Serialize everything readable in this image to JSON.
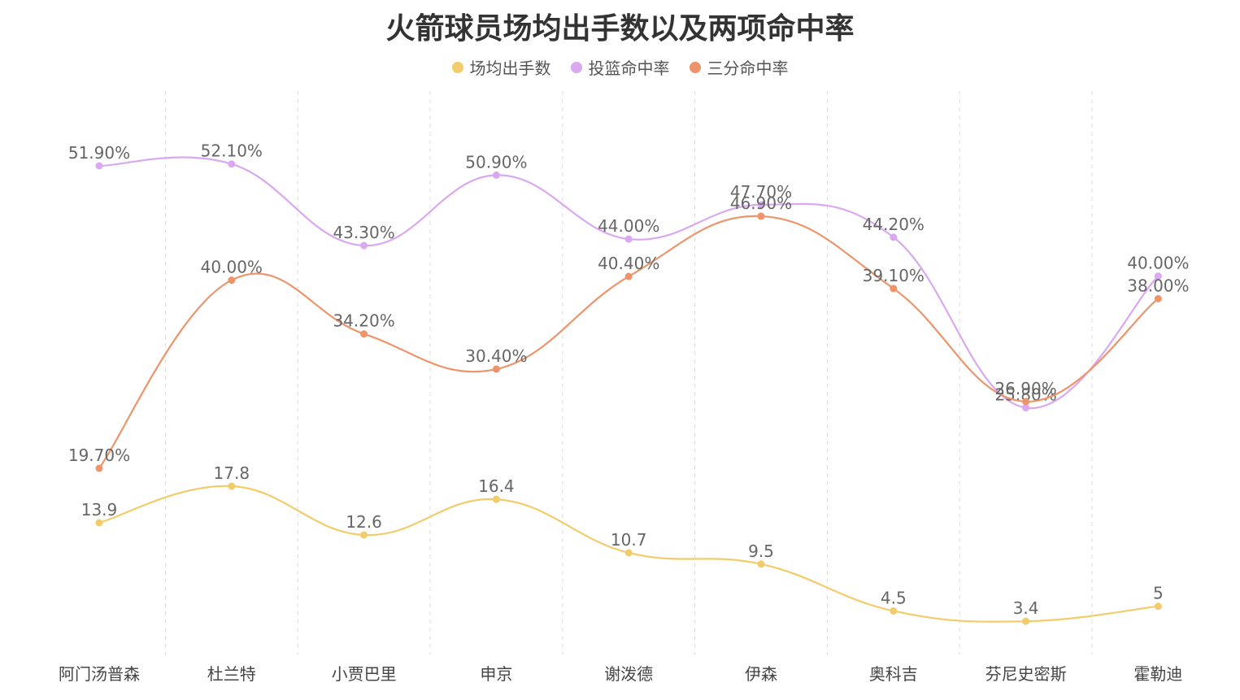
{
  "chart_data": {
    "type": "line",
    "title": "火箭球员场均出手数以及两项命中率",
    "categories": [
      "阿门汤普森",
      "杜兰特",
      "小贾巴里",
      "申京",
      "谢泼德",
      "伊森",
      "奥科吉",
      "芬尼史密斯",
      "霍勒迪"
    ],
    "series": [
      {
        "name": "场均出手数",
        "color": "#F2CC6B",
        "values": [
          13.9,
          17.8,
          12.6,
          16.4,
          10.7,
          9.5,
          4.5,
          3.4,
          5
        ],
        "labels": [
          "13.9",
          "17.8",
          "12.6",
          "16.4",
          "10.7",
          "9.5",
          "4.5",
          "3.4",
          "5"
        ]
      },
      {
        "name": "投篮命中率",
        "color": "#D9A8F0",
        "values": [
          51.9,
          52.1,
          43.3,
          50.9,
          44.0,
          47.7,
          44.2,
          25.8,
          40.0
        ],
        "labels": [
          "51.90%",
          "52.10%",
          "43.30%",
          "50.90%",
          "44.00%",
          "47.70%",
          "44.20%",
          "25.80%",
          "40.00%"
        ]
      },
      {
        "name": "三分命中率",
        "color": "#EE946A",
        "values": [
          19.7,
          40.0,
          34.2,
          30.4,
          40.4,
          46.9,
          39.1,
          26.9,
          38.0
        ],
        "labels": [
          "19.70%",
          "40.00%",
          "34.20%",
          "30.40%",
          "40.40%",
          "46.90%",
          "39.10%",
          "26.90%",
          "38.00%"
        ]
      }
    ],
    "grid": "vertical-dashed",
    "legend": "top-center",
    "smooth": true
  }
}
